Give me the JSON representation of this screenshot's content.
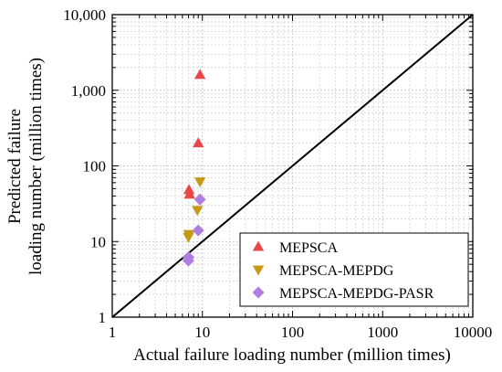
{
  "chart_data": {
    "type": "scatter",
    "x_scale": "log",
    "y_scale": "log",
    "xlim": [
      1,
      10000
    ],
    "ylim": [
      1,
      10000
    ],
    "xlabel": "Actual failure loading number (million times)",
    "ylabel": [
      "Predicted failure",
      "loading number (million times)"
    ],
    "x_ticks": [
      {
        "value": 1,
        "label": "1"
      },
      {
        "value": 10,
        "label": "10"
      },
      {
        "value": 100,
        "label": "100"
      },
      {
        "value": 1000,
        "label": "1000"
      },
      {
        "value": 10000,
        "label": "10000"
      }
    ],
    "y_ticks": [
      {
        "value": 1,
        "label": "1"
      },
      {
        "value": 10,
        "label": "10"
      },
      {
        "value": 100,
        "label": "100"
      },
      {
        "value": 1000,
        "label": "1,000"
      },
      {
        "value": 10000,
        "label": "10,000"
      }
    ],
    "grid": true,
    "reference_line": {
      "x": [
        1,
        10000
      ],
      "y": [
        1,
        10000
      ],
      "color": "#000000"
    },
    "legend_position": "bottom-right",
    "series": [
      {
        "name": "MEPSCA",
        "marker": "triangle-up",
        "color": "#e8474a",
        "points": [
          {
            "x": 9.4,
            "y": 1600
          },
          {
            "x": 9.0,
            "y": 200
          },
          {
            "x": 7.1,
            "y": 48
          },
          {
            "x": 7.2,
            "y": 42
          }
        ]
      },
      {
        "name": "MEPSCA-MEPDG",
        "marker": "triangle-down",
        "color": "#c79a16",
        "points": [
          {
            "x": 9.4,
            "y": 62
          },
          {
            "x": 8.8,
            "y": 26
          },
          {
            "x": 7.1,
            "y": 12.5
          },
          {
            "x": 7.0,
            "y": 11.5
          }
        ]
      },
      {
        "name": "MEPSCA-MEPDG-PASR",
        "marker": "diamond",
        "color": "#b07ee0",
        "points": [
          {
            "x": 9.4,
            "y": 36
          },
          {
            "x": 9.0,
            "y": 14
          },
          {
            "x": 7.0,
            "y": 6.2
          },
          {
            "x": 7.0,
            "y": 5.6
          }
        ]
      }
    ]
  }
}
